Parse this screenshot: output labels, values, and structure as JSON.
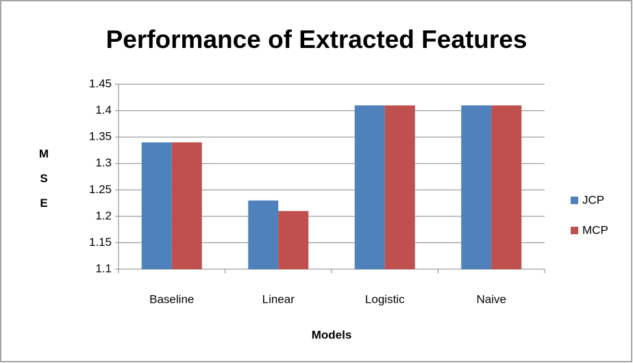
{
  "chart_data": {
    "type": "bar",
    "title": "Performance of Extracted Features",
    "x_label": "Models",
    "y_label": "MSE",
    "categories": [
      "Baseline",
      "Linear",
      "Logistic",
      "Naive"
    ],
    "series": [
      {
        "name": "JCP",
        "color": "#4f81bd",
        "values": [
          1.34,
          1.23,
          1.41,
          1.41
        ]
      },
      {
        "name": "MCP",
        "color": "#c0504d",
        "values": [
          1.34,
          1.21,
          1.41,
          1.41
        ]
      }
    ],
    "ylim": [
      1.1,
      1.45
    ],
    "yticks": [
      1.1,
      1.15,
      1.2,
      1.25,
      1.3,
      1.35,
      1.4,
      1.45
    ],
    "grid": true,
    "legend": "right"
  }
}
